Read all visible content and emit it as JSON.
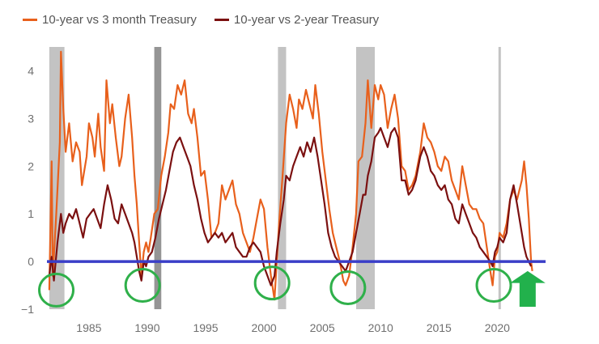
{
  "chart_data": {
    "type": "line",
    "title": "",
    "xlabel": "",
    "ylabel": "",
    "xlim": [
      1981.4,
      2024
    ],
    "ylim": [
      -1,
      4.5
    ],
    "x_ticks": [
      1985,
      1990,
      1995,
      2000,
      2005,
      2010,
      2015,
      2020
    ],
    "x_tick_labels": [
      "1985",
      "1990",
      "1995",
      "2000",
      "2005",
      "2010",
      "2015",
      "2020"
    ],
    "y_ticks": [
      -1,
      0,
      1,
      2,
      3,
      4
    ],
    "y_tick_labels": [
      "−1",
      "0",
      "1",
      "2",
      "3",
      "4"
    ],
    "series": [
      {
        "name": "10-year vs 3 month Treasury",
        "color": "#e8601c",
        "points": [
          [
            1981.6,
            -0.6
          ],
          [
            1981.8,
            2.1
          ],
          [
            1981.9,
            -0.3
          ],
          [
            1982.2,
            1.0
          ],
          [
            1982.5,
            2.5
          ],
          [
            1982.6,
            4.4
          ],
          [
            1982.8,
            3.2
          ],
          [
            1983.0,
            2.3
          ],
          [
            1983.3,
            2.9
          ],
          [
            1983.6,
            2.1
          ],
          [
            1983.9,
            2.5
          ],
          [
            1984.2,
            2.3
          ],
          [
            1984.4,
            1.6
          ],
          [
            1984.8,
            2.2
          ],
          [
            1985.0,
            2.9
          ],
          [
            1985.3,
            2.6
          ],
          [
            1985.5,
            2.2
          ],
          [
            1985.8,
            3.1
          ],
          [
            1986.0,
            2.4
          ],
          [
            1986.3,
            1.9
          ],
          [
            1986.5,
            3.8
          ],
          [
            1986.8,
            2.9
          ],
          [
            1987.0,
            3.3
          ],
          [
            1987.3,
            2.6
          ],
          [
            1987.6,
            2.0
          ],
          [
            1987.8,
            2.2
          ],
          [
            1988.1,
            3.0
          ],
          [
            1988.4,
            3.5
          ],
          [
            1988.7,
            2.6
          ],
          [
            1988.9,
            1.8
          ],
          [
            1989.1,
            1.2
          ],
          [
            1989.3,
            0.4
          ],
          [
            1989.5,
            -0.3
          ],
          [
            1989.7,
            0.2
          ],
          [
            1989.9,
            0.4
          ],
          [
            1990.1,
            0.2
          ],
          [
            1990.3,
            0.5
          ],
          [
            1990.6,
            1.0
          ],
          [
            1990.9,
            1.1
          ],
          [
            1991.2,
            1.8
          ],
          [
            1991.5,
            2.2
          ],
          [
            1991.8,
            2.7
          ],
          [
            1992.0,
            3.3
          ],
          [
            1992.3,
            3.2
          ],
          [
            1992.6,
            3.7
          ],
          [
            1992.9,
            3.5
          ],
          [
            1993.2,
            3.8
          ],
          [
            1993.5,
            3.1
          ],
          [
            1993.8,
            2.9
          ],
          [
            1994.0,
            3.2
          ],
          [
            1994.3,
            2.6
          ],
          [
            1994.6,
            1.8
          ],
          [
            1994.9,
            1.9
          ],
          [
            1995.2,
            1.3
          ],
          [
            1995.5,
            0.5
          ],
          [
            1995.8,
            0.6
          ],
          [
            1996.1,
            0.8
          ],
          [
            1996.4,
            1.6
          ],
          [
            1996.7,
            1.3
          ],
          [
            1997.0,
            1.5
          ],
          [
            1997.3,
            1.7
          ],
          [
            1997.6,
            1.2
          ],
          [
            1997.9,
            1.0
          ],
          [
            1998.2,
            0.6
          ],
          [
            1998.5,
            0.4
          ],
          [
            1998.8,
            0.2
          ],
          [
            1999.1,
            0.5
          ],
          [
            1999.4,
            0.9
          ],
          [
            1999.7,
            1.3
          ],
          [
            2000.0,
            1.1
          ],
          [
            2000.3,
            0.3
          ],
          [
            2000.6,
            -0.3
          ],
          [
            2000.9,
            -0.8
          ],
          [
            2001.1,
            0.0
          ],
          [
            2001.3,
            0.8
          ],
          [
            2001.6,
            1.8
          ],
          [
            2001.9,
            2.9
          ],
          [
            2002.2,
            3.5
          ],
          [
            2002.5,
            3.2
          ],
          [
            2002.8,
            2.8
          ],
          [
            2003.0,
            3.4
          ],
          [
            2003.3,
            3.2
          ],
          [
            2003.6,
            3.6
          ],
          [
            2003.9,
            3.3
          ],
          [
            2004.2,
            3.0
          ],
          [
            2004.4,
            3.7
          ],
          [
            2004.7,
            3.1
          ],
          [
            2005.0,
            2.3
          ],
          [
            2005.3,
            1.7
          ],
          [
            2005.6,
            1.1
          ],
          [
            2005.9,
            0.6
          ],
          [
            2006.2,
            0.3
          ],
          [
            2006.5,
            0.0
          ],
          [
            2006.8,
            -0.4
          ],
          [
            2007.0,
            -0.5
          ],
          [
            2007.3,
            -0.3
          ],
          [
            2007.6,
            0.3
          ],
          [
            2007.9,
            1.0
          ],
          [
            2008.1,
            2.1
          ],
          [
            2008.4,
            2.2
          ],
          [
            2008.7,
            2.9
          ],
          [
            2008.9,
            3.8
          ],
          [
            2009.2,
            2.8
          ],
          [
            2009.5,
            3.7
          ],
          [
            2009.8,
            3.4
          ],
          [
            2010.0,
            3.7
          ],
          [
            2010.3,
            3.5
          ],
          [
            2010.6,
            2.8
          ],
          [
            2010.9,
            3.2
          ],
          [
            2011.2,
            3.5
          ],
          [
            2011.5,
            3.0
          ],
          [
            2011.8,
            2.0
          ],
          [
            2012.1,
            1.9
          ],
          [
            2012.4,
            1.5
          ],
          [
            2012.7,
            1.6
          ],
          [
            2013.0,
            1.8
          ],
          [
            2013.4,
            2.3
          ],
          [
            2013.7,
            2.9
          ],
          [
            2014.0,
            2.6
          ],
          [
            2014.3,
            2.5
          ],
          [
            2014.6,
            2.3
          ],
          [
            2014.9,
            2.0
          ],
          [
            2015.2,
            1.9
          ],
          [
            2015.5,
            2.2
          ],
          [
            2015.8,
            2.1
          ],
          [
            2016.1,
            1.7
          ],
          [
            2016.4,
            1.5
          ],
          [
            2016.7,
            1.3
          ],
          [
            2017.0,
            2.0
          ],
          [
            2017.3,
            1.6
          ],
          [
            2017.6,
            1.2
          ],
          [
            2017.9,
            1.1
          ],
          [
            2018.2,
            1.1
          ],
          [
            2018.5,
            0.9
          ],
          [
            2018.8,
            0.8
          ],
          [
            2019.1,
            0.3
          ],
          [
            2019.4,
            -0.2
          ],
          [
            2019.6,
            -0.5
          ],
          [
            2019.8,
            0.1
          ],
          [
            2020.0,
            0.2
          ],
          [
            2020.2,
            0.6
          ],
          [
            2020.5,
            0.5
          ],
          [
            2020.8,
            0.8
          ],
          [
            2021.1,
            1.3
          ],
          [
            2021.4,
            1.5
          ],
          [
            2021.7,
            1.3
          ],
          [
            2021.9,
            1.5
          ],
          [
            2022.1,
            1.7
          ],
          [
            2022.3,
            2.1
          ],
          [
            2022.5,
            1.6
          ],
          [
            2022.7,
            0.9
          ],
          [
            2022.9,
            0.0
          ],
          [
            2023.0,
            -0.2
          ]
        ]
      },
      {
        "name": "10-year vs 2-year Treasury",
        "color": "#7b1010",
        "points": [
          [
            1981.6,
            -0.3
          ],
          [
            1981.8,
            0.1
          ],
          [
            1982.0,
            -0.4
          ],
          [
            1982.3,
            0.4
          ],
          [
            1982.6,
            1.0
          ],
          [
            1982.8,
            0.6
          ],
          [
            1983.0,
            0.8
          ],
          [
            1983.3,
            1.0
          ],
          [
            1983.6,
            0.9
          ],
          [
            1983.9,
            1.1
          ],
          [
            1984.2,
            0.8
          ],
          [
            1984.5,
            0.5
          ],
          [
            1984.8,
            0.9
          ],
          [
            1985.1,
            1.0
          ],
          [
            1985.4,
            1.1
          ],
          [
            1985.7,
            0.9
          ],
          [
            1986.0,
            0.7
          ],
          [
            1986.3,
            1.2
          ],
          [
            1986.6,
            1.6
          ],
          [
            1986.9,
            1.3
          ],
          [
            1987.2,
            0.9
          ],
          [
            1987.5,
            0.8
          ],
          [
            1987.8,
            1.2
          ],
          [
            1988.1,
            1.0
          ],
          [
            1988.4,
            0.8
          ],
          [
            1988.7,
            0.6
          ],
          [
            1988.9,
            0.4
          ],
          [
            1989.1,
            0.1
          ],
          [
            1989.3,
            -0.2
          ],
          [
            1989.5,
            -0.4
          ],
          [
            1989.7,
            0.0
          ],
          [
            1989.9,
            -0.1
          ],
          [
            1990.1,
            0.1
          ],
          [
            1990.4,
            0.2
          ],
          [
            1990.7,
            0.5
          ],
          [
            1991.0,
            0.9
          ],
          [
            1991.3,
            1.2
          ],
          [
            1991.6,
            1.5
          ],
          [
            1991.9,
            1.9
          ],
          [
            1992.2,
            2.3
          ],
          [
            1992.5,
            2.5
          ],
          [
            1992.8,
            2.6
          ],
          [
            1993.1,
            2.4
          ],
          [
            1993.4,
            2.2
          ],
          [
            1993.7,
            2.0
          ],
          [
            1994.0,
            1.6
          ],
          [
            1994.3,
            1.3
          ],
          [
            1994.6,
            0.9
          ],
          [
            1994.9,
            0.6
          ],
          [
            1995.2,
            0.4
          ],
          [
            1995.5,
            0.5
          ],
          [
            1995.8,
            0.6
          ],
          [
            1996.1,
            0.5
          ],
          [
            1996.4,
            0.6
          ],
          [
            1996.7,
            0.4
          ],
          [
            1997.0,
            0.5
          ],
          [
            1997.3,
            0.6
          ],
          [
            1997.6,
            0.3
          ],
          [
            1997.9,
            0.2
          ],
          [
            1998.2,
            0.1
          ],
          [
            1998.5,
            0.1
          ],
          [
            1998.8,
            0.3
          ],
          [
            1999.1,
            0.4
          ],
          [
            1999.4,
            0.3
          ],
          [
            1999.7,
            0.2
          ],
          [
            2000.0,
            -0.1
          ],
          [
            2000.3,
            -0.3
          ],
          [
            2000.6,
            -0.5
          ],
          [
            2000.9,
            -0.3
          ],
          [
            2001.1,
            0.2
          ],
          [
            2001.4,
            0.8
          ],
          [
            2001.7,
            1.3
          ],
          [
            2001.9,
            1.8
          ],
          [
            2002.2,
            1.7
          ],
          [
            2002.5,
            2.0
          ],
          [
            2002.8,
            2.2
          ],
          [
            2003.1,
            2.4
          ],
          [
            2003.4,
            2.2
          ],
          [
            2003.7,
            2.5
          ],
          [
            2004.0,
            2.3
          ],
          [
            2004.3,
            2.6
          ],
          [
            2004.6,
            2.2
          ],
          [
            2004.9,
            1.7
          ],
          [
            2005.2,
            1.2
          ],
          [
            2005.5,
            0.6
          ],
          [
            2005.8,
            0.3
          ],
          [
            2006.1,
            0.1
          ],
          [
            2006.4,
            0.0
          ],
          [
            2006.7,
            -0.1
          ],
          [
            2007.0,
            -0.2
          ],
          [
            2007.3,
            0.0
          ],
          [
            2007.6,
            0.2
          ],
          [
            2007.9,
            0.6
          ],
          [
            2008.2,
            1.0
          ],
          [
            2008.5,
            1.4
          ],
          [
            2008.7,
            1.4
          ],
          [
            2008.9,
            1.8
          ],
          [
            2009.2,
            2.1
          ],
          [
            2009.5,
            2.6
          ],
          [
            2009.8,
            2.7
          ],
          [
            2010.0,
            2.8
          ],
          [
            2010.3,
            2.6
          ],
          [
            2010.6,
            2.4
          ],
          [
            2010.9,
            2.7
          ],
          [
            2011.2,
            2.8
          ],
          [
            2011.5,
            2.6
          ],
          [
            2011.8,
            1.7
          ],
          [
            2012.1,
            1.7
          ],
          [
            2012.4,
            1.4
          ],
          [
            2012.7,
            1.5
          ],
          [
            2013.0,
            1.7
          ],
          [
            2013.4,
            2.2
          ],
          [
            2013.7,
            2.4
          ],
          [
            2014.0,
            2.2
          ],
          [
            2014.3,
            1.9
          ],
          [
            2014.6,
            1.8
          ],
          [
            2014.9,
            1.6
          ],
          [
            2015.2,
            1.5
          ],
          [
            2015.5,
            1.6
          ],
          [
            2015.8,
            1.3
          ],
          [
            2016.1,
            1.2
          ],
          [
            2016.4,
            0.9
          ],
          [
            2016.7,
            0.8
          ],
          [
            2017.0,
            1.2
          ],
          [
            2017.3,
            1.0
          ],
          [
            2017.6,
            0.8
          ],
          [
            2017.9,
            0.6
          ],
          [
            2018.2,
            0.5
          ],
          [
            2018.5,
            0.3
          ],
          [
            2018.8,
            0.2
          ],
          [
            2019.1,
            0.1
          ],
          [
            2019.4,
            0.0
          ],
          [
            2019.6,
            -0.1
          ],
          [
            2019.8,
            0.2
          ],
          [
            2020.0,
            0.3
          ],
          [
            2020.2,
            0.5
          ],
          [
            2020.5,
            0.4
          ],
          [
            2020.8,
            0.6
          ],
          [
            2021.1,
            1.3
          ],
          [
            2021.4,
            1.6
          ],
          [
            2021.7,
            1.2
          ],
          [
            2021.9,
            0.9
          ],
          [
            2022.1,
            0.6
          ],
          [
            2022.3,
            0.3
          ],
          [
            2022.5,
            0.1
          ],
          [
            2022.7,
            0.0
          ],
          [
            2022.9,
            -0.1
          ]
        ]
      }
    ],
    "recession_bands": [
      [
        1981.6,
        1982.9
      ],
      [
        1990.6,
        1991.2
      ],
      [
        2001.2,
        2001.9
      ],
      [
        2007.9,
        2009.5
      ],
      [
        2020.1,
        2020.3
      ]
    ],
    "zero_line": {
      "y": 0,
      "color": "#3a3ec8"
    },
    "inversion_circles": [
      [
        1982.2,
        -0.6
      ],
      [
        1989.6,
        -0.5
      ],
      [
        2000.7,
        -0.45
      ],
      [
        2007.2,
        -0.55
      ],
      [
        2019.7,
        -0.5
      ]
    ],
    "highlight_arrow": {
      "x": 2022.6,
      "color": "#22b14c"
    },
    "legend_position": "top-left"
  }
}
